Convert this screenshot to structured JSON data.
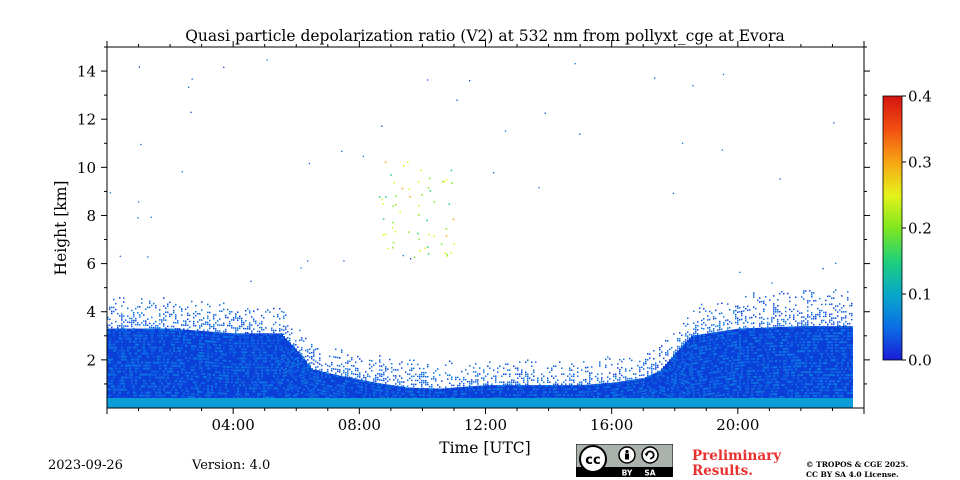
{
  "chart_data": {
    "type": "heatmap",
    "title": "Quasi particle depolarization ratio (V2) at 532 nm from pollyxt_cge at Evora",
    "xlabel": "Time [UTC]",
    "ylabel": "Height [km]",
    "x_range_hours": [
      0,
      24
    ],
    "ylim_km": [
      0,
      15
    ],
    "x_ticks": [
      {
        "hour": 4,
        "label": "04:00"
      },
      {
        "hour": 8,
        "label": "08:00"
      },
      {
        "hour": 12,
        "label": "12:00"
      },
      {
        "hour": 16,
        "label": "16:00"
      },
      {
        "hour": 20,
        "label": "20:00"
      }
    ],
    "y_ticks": [
      {
        "km": 2,
        "label": "2"
      },
      {
        "km": 4,
        "label": "4"
      },
      {
        "km": 6,
        "label": "6"
      },
      {
        "km": 8,
        "label": "8"
      },
      {
        "km": 10,
        "label": "10"
      },
      {
        "km": 12,
        "label": "12"
      },
      {
        "km": 14,
        "label": "14"
      }
    ],
    "colorbar": {
      "range": [
        0.0,
        0.4
      ],
      "ticks": [
        {
          "value": 0.0,
          "label": "0.0"
        },
        {
          "value": 0.1,
          "label": "0.1"
        },
        {
          "value": 0.2,
          "label": "0.2"
        },
        {
          "value": 0.3,
          "label": "0.3"
        },
        {
          "value": 0.4,
          "label": "0.4"
        }
      ],
      "colormap": [
        "#1a1cd6",
        "#0b6fe6",
        "#09a8c8",
        "#1fd07a",
        "#7fe81f",
        "#e5f21a",
        "#f7a514",
        "#f24f12",
        "#d4140f"
      ]
    },
    "data_end_hour": 23.6,
    "boundary_layer_top_km": [
      [
        0,
        3.3
      ],
      [
        2,
        3.3
      ],
      [
        4,
        3.1
      ],
      [
        5.5,
        3.1
      ],
      [
        6,
        2.4
      ],
      [
        6.5,
        1.6
      ],
      [
        7.5,
        1.3
      ],
      [
        8.5,
        1.05
      ],
      [
        9.5,
        0.85
      ],
      [
        10.5,
        0.8
      ],
      [
        12,
        0.95
      ],
      [
        13.5,
        0.95
      ],
      [
        15,
        0.95
      ],
      [
        16,
        1.05
      ],
      [
        17,
        1.25
      ],
      [
        17.5,
        1.55
      ],
      [
        18,
        2.3
      ],
      [
        18.5,
        3.0
      ],
      [
        20,
        3.3
      ],
      [
        22,
        3.4
      ],
      [
        23.6,
        3.4
      ]
    ],
    "sparse_layer_top_km": [
      [
        0,
        4.8
      ],
      [
        3,
        4.6
      ],
      [
        5.5,
        4.4
      ],
      [
        6,
        3.5
      ],
      [
        7,
        2.6
      ],
      [
        9,
        2.2
      ],
      [
        12,
        2.1
      ],
      [
        15,
        2.1
      ],
      [
        17,
        2.4
      ],
      [
        18,
        3.5
      ],
      [
        19,
        4.6
      ],
      [
        21,
        5.1
      ],
      [
        23.6,
        5.2
      ]
    ],
    "typical_depol_ratio_boundary_layer": 0.03,
    "cirrus_feature": {
      "time_hours": [
        8.5,
        11
      ],
      "height_km": [
        6.2,
        10.3
      ],
      "depol_ratio": [
        0.15,
        0.3
      ]
    }
  },
  "footer": {
    "date": "2023-09-26",
    "version": "Version: 4.0",
    "preliminary": [
      "Preliminary",
      "Results."
    ],
    "copyright": [
      "© TROPOS & CGE 2025.",
      "CC BY SA 4.0 License."
    ],
    "license_badge": {
      "cc": "cc",
      "by": "BY",
      "sa": "SA"
    }
  }
}
